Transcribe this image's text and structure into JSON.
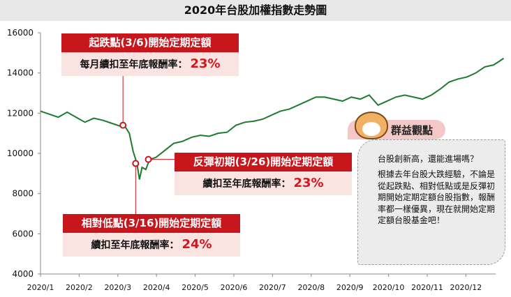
{
  "chart_data": {
    "type": "line",
    "title": "2020年台股加權指數走勢圖",
    "xlabel": "",
    "ylabel": "",
    "ylim": [
      4000,
      16000
    ],
    "yticks": [
      4000,
      6000,
      8000,
      10000,
      12000,
      14000,
      16000
    ],
    "xticks": [
      "2020/1",
      "2020/2",
      "2020/3",
      "2020/4",
      "2020/5",
      "2020/6",
      "2020/7",
      "2020/8",
      "2020/9",
      "2020/10",
      "2020/11",
      "2020/12"
    ],
    "series": [
      {
        "name": "台股加權指數",
        "color": "#1e7b2e",
        "points": [
          [
            0,
            12100
          ],
          [
            7,
            11950
          ],
          [
            14,
            11800
          ],
          [
            21,
            12050
          ],
          [
            28,
            11800
          ],
          [
            35,
            11550
          ],
          [
            42,
            11750
          ],
          [
            49,
            11650
          ],
          [
            56,
            11500
          ],
          [
            63,
            11350
          ],
          [
            66,
            11400
          ],
          [
            70,
            11000
          ],
          [
            73,
            10100
          ],
          [
            76,
            9500
          ],
          [
            78,
            8700
          ],
          [
            80,
            9300
          ],
          [
            83,
            9200
          ],
          [
            86,
            9700
          ],
          [
            91,
            9800
          ],
          [
            98,
            10150
          ],
          [
            105,
            10500
          ],
          [
            112,
            10600
          ],
          [
            119,
            10800
          ],
          [
            126,
            10900
          ],
          [
            133,
            10850
          ],
          [
            140,
            11000
          ],
          [
            147,
            11050
          ],
          [
            154,
            11400
          ],
          [
            161,
            11550
          ],
          [
            168,
            11600
          ],
          [
            175,
            11700
          ],
          [
            182,
            11900
          ],
          [
            189,
            12100
          ],
          [
            196,
            12200
          ],
          [
            203,
            12400
          ],
          [
            210,
            12600
          ],
          [
            217,
            12800
          ],
          [
            224,
            12800
          ],
          [
            231,
            12700
          ],
          [
            238,
            12600
          ],
          [
            245,
            12800
          ],
          [
            252,
            12700
          ],
          [
            259,
            12900
          ],
          [
            266,
            12400
          ],
          [
            273,
            12600
          ],
          [
            280,
            12800
          ],
          [
            287,
            12900
          ],
          [
            294,
            12800
          ],
          [
            301,
            12700
          ],
          [
            308,
            12900
          ],
          [
            315,
            13200
          ],
          [
            322,
            13550
          ],
          [
            329,
            13700
          ],
          [
            336,
            13800
          ],
          [
            343,
            14000
          ],
          [
            350,
            14300
          ],
          [
            357,
            14400
          ],
          [
            362,
            14600
          ],
          [
            365,
            14730
          ]
        ]
      }
    ],
    "markers": [
      {
        "day": 65,
        "value": 11400
      },
      {
        "day": 75,
        "value": 9500
      },
      {
        "day": 85,
        "value": 9700
      }
    ]
  },
  "callouts": [
    {
      "head": "起跌點(3/6)開始定期定額",
      "body": "每月續扣至年底報酬率：",
      "value": "23%"
    },
    {
      "head": "反彈初期(3/26)開始定期定額",
      "body": "續扣至年底報酬率：",
      "value": "23%"
    },
    {
      "head": "相對低點(3/16)開始定期定額",
      "body": "續扣至年底報酬率：",
      "value": "24%"
    }
  ],
  "note": {
    "tag": "群益觀點",
    "question": "台股創新高，還能進場嗎？",
    "text": "根據去年台股大跌經驗，不論是從起跌點、相對低點或是反彈初期開始定期定額台股指數，報酬率都一樣優異，現在就開始定期定額台股基金吧！"
  }
}
